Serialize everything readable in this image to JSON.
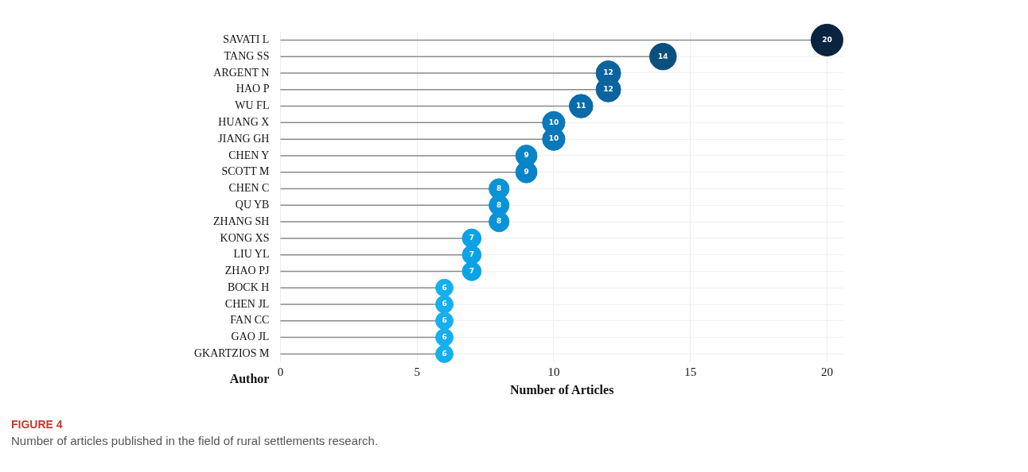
{
  "chart_data": {
    "type": "lollipop",
    "categories": [
      "SAVATI L",
      "TANG SS",
      "ARGENT N",
      "HAO P",
      "WU FL",
      "HUANG X",
      "JIANG GH",
      "CHEN Y",
      "SCOTT M",
      "CHEN C",
      "QU YB",
      "ZHANG SH",
      "KONG XS",
      "LIU YL",
      "ZHAO PJ",
      "BOCK H",
      "CHEN JL",
      "FAN CC",
      "GAO JL",
      "GKARTZIOS M"
    ],
    "values": [
      20,
      14,
      12,
      12,
      11,
      10,
      10,
      9,
      9,
      8,
      8,
      8,
      7,
      7,
      7,
      6,
      6,
      6,
      6,
      6
    ],
    "colors": [
      "#0a2340",
      "#0b4f7e",
      "#0c649f",
      "#0c649f",
      "#0b6aa8",
      "#0a78b9",
      "#0a78b9",
      "#0a84c8",
      "#0a84c8",
      "#0b93d8",
      "#0b93d8",
      "#0b93d8",
      "#0ca2e6",
      "#0ca2e6",
      "#0ca2e6",
      "#14b0f0",
      "#14b0f0",
      "#14b0f0",
      "#14b0f0",
      "#14b0f0"
    ],
    "sizes": [
      1,
      0.7,
      0.6,
      0.6,
      0.55,
      0.5,
      0.5,
      0.45,
      0.45,
      0.4,
      0.4,
      0.4,
      0.35,
      0.35,
      0.35,
      0.3,
      0.3,
      0.3,
      0.3,
      0.3
    ],
    "orientation": "horizontal",
    "xlim": [
      0,
      20.6
    ],
    "xticks": [
      0,
      5,
      10,
      15,
      20
    ],
    "xlabel": "Number of Articles",
    "ylabel": "Author",
    "grid": true,
    "data_labels": true,
    "marker": "circle",
    "annotations": [
      "FIGURE 4",
      "Number of articles published in the field of rural settlements research."
    ]
  }
}
